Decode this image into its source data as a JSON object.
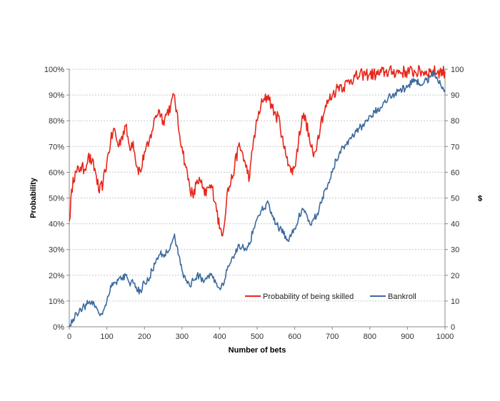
{
  "chart_data": {
    "type": "line",
    "xlabel": "Number of bets",
    "ylabel_left": "Probability",
    "ylabel_right": "$",
    "xlim": [
      0,
      1000
    ],
    "ylim_left": [
      0,
      100
    ],
    "ylim_right": [
      0,
      100
    ],
    "x_ticks": [
      "0",
      "100",
      "200",
      "300",
      "400",
      "500",
      "600",
      "700",
      "800",
      "900",
      "1000"
    ],
    "y_left_ticks": [
      "0%",
      "10%",
      "20%",
      "30%",
      "40%",
      "50%",
      "60%",
      "70%",
      "80%",
      "90%",
      "100%"
    ],
    "y_right_ticks": [
      "0",
      "10",
      "20",
      "30",
      "40",
      "50",
      "60",
      "70",
      "80",
      "90",
      "100"
    ],
    "grid": true,
    "legend_position": "bottom-right",
    "series": [
      {
        "name": "Probability of being skilled",
        "axis": "left",
        "color": "#e8261b",
        "x": [
          0,
          10,
          20,
          30,
          40,
          50,
          60,
          70,
          80,
          90,
          100,
          110,
          120,
          130,
          140,
          150,
          160,
          170,
          180,
          190,
          200,
          210,
          220,
          230,
          240,
          250,
          260,
          270,
          280,
          290,
          300,
          310,
          320,
          330,
          340,
          350,
          360,
          370,
          380,
          390,
          400,
          410,
          420,
          430,
          440,
          450,
          460,
          470,
          480,
          490,
          500,
          510,
          520,
          530,
          540,
          550,
          560,
          570,
          580,
          590,
          600,
          610,
          620,
          630,
          640,
          650,
          660,
          670,
          680,
          690,
          700,
          710,
          720,
          730,
          740,
          750,
          760,
          770,
          780,
          790,
          800,
          820,
          840,
          860,
          880,
          900,
          920,
          940,
          960,
          980,
          1000
        ],
        "values": [
          41,
          58,
          60,
          62,
          61,
          66,
          64,
          60,
          52,
          56,
          64,
          72,
          77,
          70,
          74,
          78,
          70,
          72,
          62,
          60,
          68,
          70,
          76,
          82,
          84,
          80,
          83,
          86,
          90,
          78,
          70,
          62,
          55,
          50,
          57,
          56,
          51,
          54,
          54,
          48,
          38,
          37,
          52,
          56,
          62,
          70,
          68,
          62,
          58,
          72,
          80,
          86,
          88,
          90,
          85,
          82,
          80,
          70,
          66,
          60,
          62,
          72,
          82,
          80,
          72,
          66,
          72,
          80,
          84,
          88,
          90,
          92,
          94,
          93,
          95,
          96,
          97,
          97,
          98,
          98,
          98,
          98,
          99,
          99,
          99,
          99,
          99,
          99,
          99,
          99,
          99
        ]
      },
      {
        "name": "Bankroll",
        "axis": "right",
        "color": "#3c6a9e",
        "x": [
          0,
          10,
          20,
          30,
          40,
          50,
          60,
          70,
          80,
          90,
          100,
          110,
          120,
          130,
          140,
          150,
          160,
          170,
          180,
          190,
          200,
          210,
          220,
          230,
          240,
          250,
          260,
          270,
          280,
          290,
          300,
          310,
          320,
          330,
          340,
          350,
          360,
          370,
          380,
          390,
          400,
          410,
          420,
          430,
          440,
          450,
          460,
          470,
          480,
          490,
          500,
          510,
          520,
          530,
          540,
          550,
          560,
          570,
          580,
          590,
          600,
          610,
          620,
          630,
          640,
          650,
          660,
          670,
          680,
          690,
          700,
          710,
          720,
          730,
          740,
          750,
          760,
          770,
          780,
          790,
          800,
          820,
          840,
          860,
          880,
          900,
          920,
          940,
          960,
          970,
          980,
          1000
        ],
        "values": [
          0,
          3,
          5,
          7,
          8,
          9,
          10,
          8,
          5,
          6,
          10,
          16,
          17,
          18,
          19,
          20,
          17,
          17,
          14,
          14,
          17,
          18,
          22,
          25,
          28,
          28,
          29,
          32,
          36,
          28,
          22,
          18,
          16,
          18,
          20,
          19,
          18,
          20,
          20,
          17,
          15,
          16,
          22,
          25,
          28,
          32,
          31,
          30,
          32,
          38,
          42,
          45,
          46,
          48,
          43,
          40,
          38,
          36,
          34,
          35,
          38,
          42,
          46,
          44,
          40,
          42,
          44,
          48,
          53,
          56,
          60,
          65,
          68,
          70,
          72,
          73,
          75,
          77,
          78,
          80,
          82,
          84,
          88,
          90,
          92,
          93,
          96,
          94,
          97,
          99,
          96,
          92
        ]
      }
    ]
  }
}
